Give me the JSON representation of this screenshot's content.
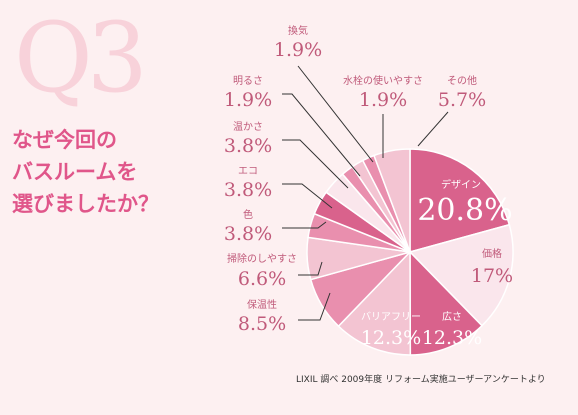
{
  "heading": {
    "q_number": "Q3",
    "question_lines": [
      "なぜ今回の",
      "バスルームを",
      "選びましたか？"
    ]
  },
  "source_note": "LIXIL 調べ 2009年度 リフォーム実施ユーザーアンケートより",
  "colors": {
    "background": "#fdf0f1",
    "accent": "#e0568a",
    "label_text": "#c05a7a",
    "slice_dark": "#d9628c",
    "slice_mid": "#e98fae",
    "slice_light": "#f3c4d2",
    "slice_pale": "#fae6ec"
  },
  "chart_data": {
    "type": "pie",
    "title": "",
    "unit": "%",
    "slices": [
      {
        "label": "デザイン",
        "value": 20.8,
        "display": "20.8%",
        "color": "#d9628c"
      },
      {
        "label": "価格",
        "value": 17,
        "display": "17%",
        "color": "#fae6ec"
      },
      {
        "label": "広さ",
        "value": 12.3,
        "display": "12.3%",
        "color": "#d9628c"
      },
      {
        "label": "バリアフリー",
        "value": 12.3,
        "display": "12.3%",
        "color": "#f3c4d2"
      },
      {
        "label": "保温性",
        "value": 8.5,
        "display": "8.5%",
        "color": "#e98fae"
      },
      {
        "label": "掃除のしやすさ",
        "value": 6.6,
        "display": "6.6%",
        "color": "#f3c4d2"
      },
      {
        "label": "色",
        "value": 3.8,
        "display": "3.8%",
        "color": "#e98fae"
      },
      {
        "label": "エコ",
        "value": 3.8,
        "display": "3.8%",
        "color": "#d9628c"
      },
      {
        "label": "温かさ",
        "value": 3.8,
        "display": "3.8%",
        "color": "#fae6ec"
      },
      {
        "label": "明るさ",
        "value": 1.9,
        "display": "1.9%",
        "color": "#e98fae"
      },
      {
        "label": "換気",
        "value": 1.9,
        "display": "1.9%",
        "color": "#f3c4d2"
      },
      {
        "label": "水栓の使いやすさ",
        "value": 1.9,
        "display": "1.9%",
        "color": "#e98fae"
      },
      {
        "label": "その他",
        "value": 5.7,
        "display": "5.7%",
        "color": "#f3c4d2"
      }
    ]
  }
}
